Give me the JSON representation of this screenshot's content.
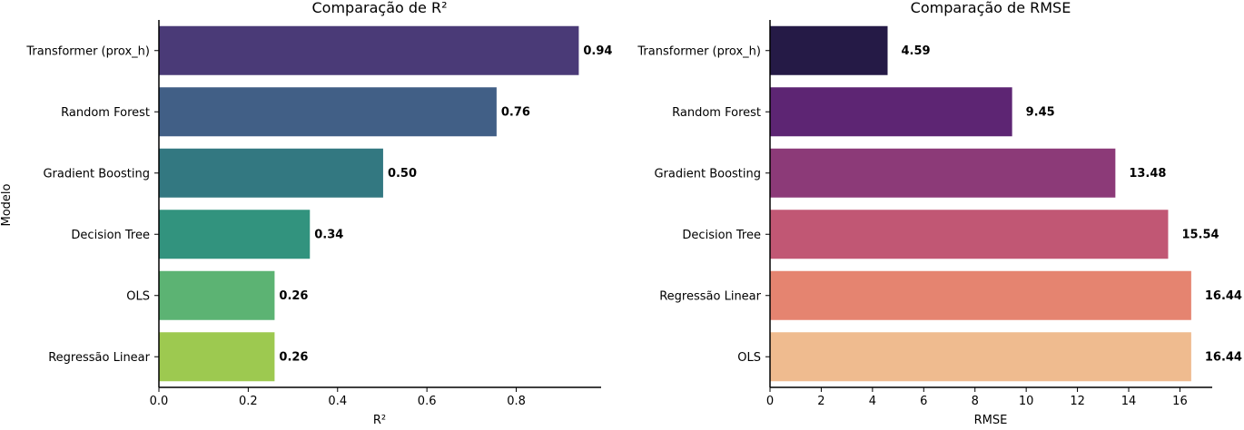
{
  "chart_data": [
    {
      "type": "bar",
      "orientation": "horizontal",
      "title": "Comparação de R²",
      "xlabel": "R²",
      "ylabel": "Modelo",
      "xlim": [
        0,
        0.99
      ],
      "xticks": [
        0.0,
        0.2,
        0.4,
        0.6,
        0.8
      ],
      "xtick_labels": [
        "0.0",
        "0.2",
        "0.4",
        "0.6",
        "0.8"
      ],
      "categories": [
        "Transformer (prox_h)",
        "Random Forest",
        "Gradient Boosting",
        "Decision Tree",
        "OLS",
        "Regressão Linear"
      ],
      "values": [
        0.94,
        0.756,
        0.502,
        0.338,
        0.259,
        0.259
      ],
      "value_labels": [
        "0.94",
        "0.76",
        "0.50",
        "0.34",
        "0.26",
        "0.26"
      ],
      "colors": [
        "#482878",
        "#3e4989",
        "#31688e",
        "#26828e",
        "#35b779",
        "#6ece58"
      ],
      "bar_colors": [
        "#4a3a77",
        "#415f86",
        "#337881",
        "#32937e",
        "#5cb373",
        "#9dc950"
      ],
      "grid": false
    },
    {
      "type": "bar",
      "orientation": "horizontal",
      "title": "Comparação de RMSE",
      "xlabel": "RMSE",
      "ylabel": "",
      "xlim": [
        0,
        17.26
      ],
      "xticks": [
        0,
        2,
        4,
        6,
        8,
        10,
        12,
        14,
        16
      ],
      "xtick_labels": [
        "0",
        "2",
        "4",
        "6",
        "8",
        "10",
        "12",
        "14",
        "16"
      ],
      "categories": [
        "Transformer (prox_h)",
        "Random Forest",
        "Gradient Boosting",
        "Decision Tree",
        "Regressão Linear",
        "OLS"
      ],
      "values": [
        4.59,
        9.45,
        13.48,
        15.54,
        16.44,
        16.44
      ],
      "value_labels": [
        "4.59",
        "9.45",
        "13.48",
        "15.54",
        "16.44",
        "16.44"
      ],
      "bar_colors": [
        "#251a46",
        "#5d2573",
        "#8c3a78",
        "#c15774",
        "#e58470",
        "#efbb8f"
      ],
      "grid": false
    }
  ]
}
